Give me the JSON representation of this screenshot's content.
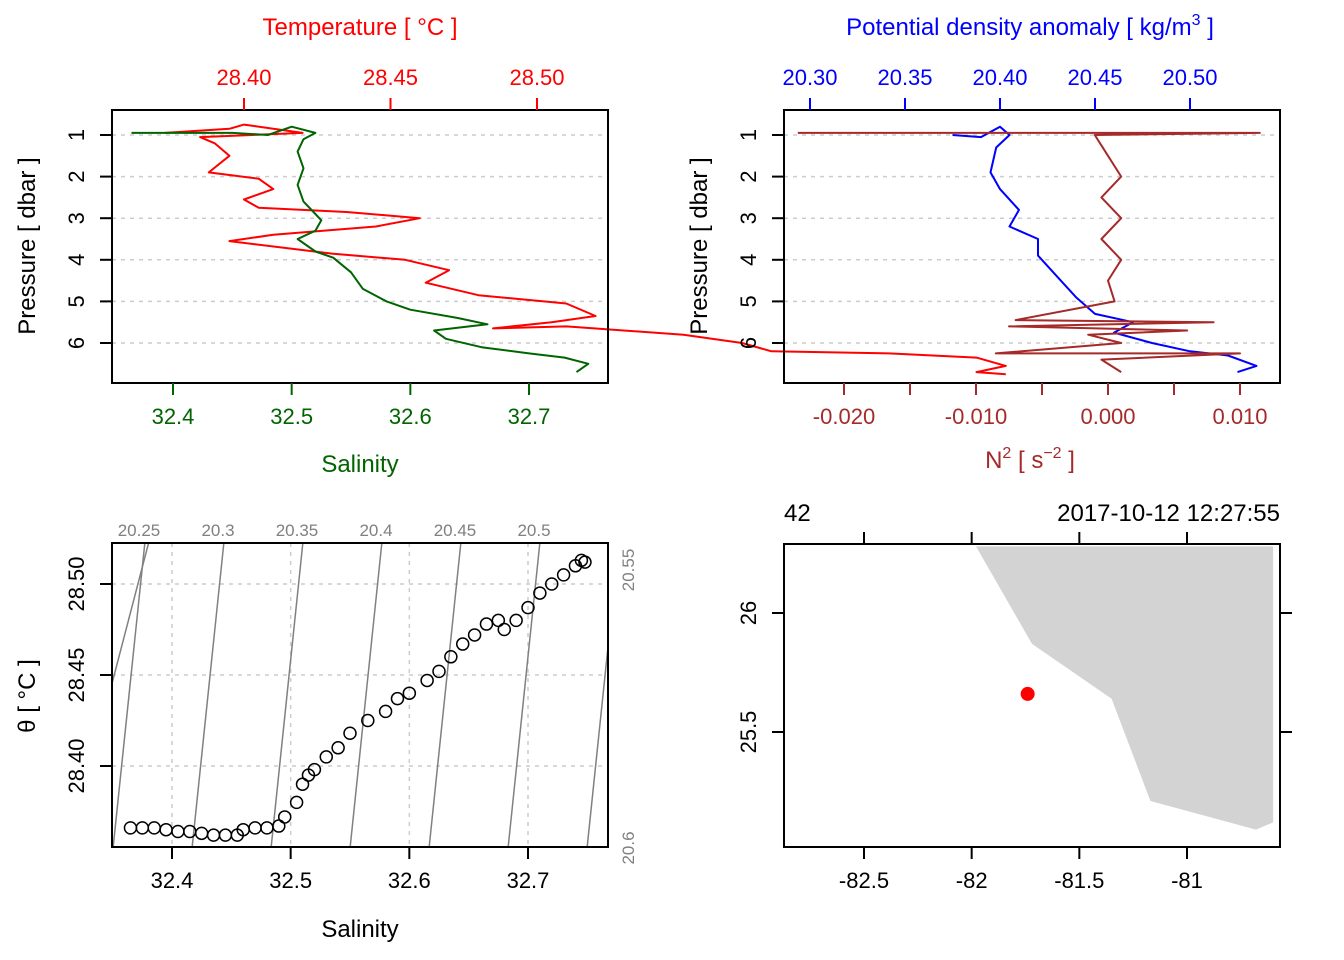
{
  "chart_data": [
    {
      "id": "profile_TS",
      "type": "line",
      "title": "",
      "top_axis_label": "Temperature [ °C ]",
      "top_axis_color": "#ff0000",
      "top_axis_ticks": [
        "28.40",
        "28.45",
        "28.50"
      ],
      "top_axis_tick_values": [
        28.4,
        28.45,
        28.5
      ],
      "top_axis_range": [
        28.355,
        28.525
      ],
      "bottom_axis_label": "Salinity",
      "bottom_axis_color": "#006400",
      "bottom_axis_ticks": [
        "32.4",
        "32.5",
        "32.6",
        "32.7"
      ],
      "bottom_axis_tick_values": [
        32.4,
        32.5,
        32.6,
        32.7
      ],
      "bottom_axis_range": [
        32.35,
        32.77
      ],
      "ylabel": "Pressure [ dbar ]",
      "y_ticks": [
        "1",
        "2",
        "3",
        "4",
        "5",
        "6"
      ],
      "y_tick_values": [
        1,
        2,
        3,
        4,
        5,
        6
      ],
      "ylim": [
        6.9,
        0.6
      ],
      "grid": true,
      "series": [
        {
          "name": "Temperature",
          "color": "#ff0000",
          "axis": "top",
          "points": [
            [
              28.373,
              0.95
            ],
            [
              28.395,
              0.85
            ],
            [
              28.4,
              0.75
            ],
            [
              28.41,
              0.85
            ],
            [
              28.42,
              0.95
            ],
            [
              28.385,
              1.05
            ],
            [
              28.39,
              1.2
            ],
            [
              28.395,
              1.5
            ],
            [
              28.388,
              1.9
            ],
            [
              28.405,
              2.05
            ],
            [
              28.41,
              2.3
            ],
            [
              28.4,
              2.55
            ],
            [
              28.405,
              2.75
            ],
            [
              28.435,
              2.85
            ],
            [
              28.46,
              3.0
            ],
            [
              28.445,
              3.2
            ],
            [
              28.41,
              3.4
            ],
            [
              28.395,
              3.55
            ],
            [
              28.43,
              3.85
            ],
            [
              28.455,
              4.0
            ],
            [
              28.47,
              4.25
            ],
            [
              28.462,
              4.55
            ],
            [
              28.48,
              4.85
            ],
            [
              28.51,
              5.05
            ],
            [
              28.52,
              5.35
            ],
            [
              28.505,
              5.5
            ],
            [
              28.485,
              5.65
            ],
            [
              28.51,
              5.6
            ],
            [
              28.55,
              5.8
            ],
            [
              28.57,
              6.0
            ],
            [
              28.58,
              6.2
            ],
            [
              28.62,
              6.25
            ],
            [
              28.65,
              6.35
            ],
            [
              28.66,
              6.55
            ],
            [
              28.65,
              6.7
            ],
            [
              28.66,
              6.75
            ]
          ]
        },
        {
          "name": "Salinity",
          "color": "#006400",
          "axis": "bottom",
          "points": [
            [
              32.365,
              0.95
            ],
            [
              32.45,
              0.95
            ],
            [
              32.48,
              1.0
            ],
            [
              32.5,
              0.8
            ],
            [
              32.52,
              0.95
            ],
            [
              32.51,
              1.1
            ],
            [
              32.505,
              1.4
            ],
            [
              32.51,
              1.8
            ],
            [
              32.505,
              2.2
            ],
            [
              32.51,
              2.6
            ],
            [
              32.52,
              2.9
            ],
            [
              32.525,
              3.05
            ],
            [
              32.52,
              3.3
            ],
            [
              32.505,
              3.5
            ],
            [
              32.52,
              3.8
            ],
            [
              32.535,
              3.95
            ],
            [
              32.55,
              4.3
            ],
            [
              32.56,
              4.7
            ],
            [
              32.58,
              5.0
            ],
            [
              32.6,
              5.2
            ],
            [
              32.64,
              5.4
            ],
            [
              32.665,
              5.55
            ],
            [
              32.62,
              5.7
            ],
            [
              32.63,
              5.9
            ],
            [
              32.66,
              6.1
            ],
            [
              32.7,
              6.25
            ],
            [
              32.73,
              6.35
            ],
            [
              32.75,
              6.5
            ],
            [
              32.74,
              6.7
            ]
          ]
        }
      ]
    },
    {
      "id": "profile_density_N2",
      "type": "line",
      "top_axis_label": "Potential density anomaly [ kg/m³ ]",
      "top_axis_color": "#0000ff",
      "top_axis_ticks": [
        "20.30",
        "20.35",
        "20.40",
        "20.45",
        "20.50"
      ],
      "top_axis_tick_values": [
        20.3,
        20.35,
        20.4,
        20.45,
        20.5
      ],
      "top_axis_range": [
        20.28,
        20.54
      ],
      "bottom_axis_label": "N² [ s⁻² ]",
      "bottom_axis_color": "#a52a2a",
      "bottom_axis_ticks": [
        "-0.020",
        "",
        "-0.010",
        "",
        "0.000",
        "",
        "0.010"
      ],
      "bottom_axis_tick_values": [
        -0.02,
        -0.015,
        -0.01,
        -0.005,
        0.0,
        0.005,
        0.01
      ],
      "bottom_axis_range": [
        -0.0248,
        0.0125
      ],
      "ylabel": "Pressure [ dbar ]",
      "y_ticks": [
        "1",
        "2",
        "3",
        "4",
        "5",
        "6"
      ],
      "y_tick_values": [
        1,
        2,
        3,
        4,
        5,
        6
      ],
      "ylim": [
        6.9,
        0.6
      ],
      "grid": true,
      "series": [
        {
          "name": "Potential density anomaly",
          "color": "#0000ff",
          "axis": "top",
          "points": [
            [
              20.375,
              1.0
            ],
            [
              20.39,
              1.05
            ],
            [
              20.4,
              0.8
            ],
            [
              20.405,
              1.0
            ],
            [
              20.398,
              1.3
            ],
            [
              20.395,
              1.9
            ],
            [
              20.4,
              2.3
            ],
            [
              20.41,
              2.8
            ],
            [
              20.405,
              3.2
            ],
            [
              20.42,
              3.5
            ],
            [
              20.42,
              3.9
            ],
            [
              20.43,
              4.4
            ],
            [
              20.44,
              4.9
            ],
            [
              20.45,
              5.3
            ],
            [
              20.47,
              5.5
            ],
            [
              20.46,
              5.75
            ],
            [
              20.48,
              6.0
            ],
            [
              20.5,
              6.2
            ],
            [
              20.52,
              6.3
            ],
            [
              20.535,
              6.55
            ],
            [
              20.525,
              6.7
            ]
          ]
        },
        {
          "name": "N2",
          "color": "#a52a2a",
          "axis": "bottom",
          "points": [
            [
              -0.0235,
              0.95
            ],
            [
              0.0115,
              0.95
            ],
            [
              -0.001,
              1.0
            ],
            [
              0.0,
              1.5
            ],
            [
              0.001,
              2.0
            ],
            [
              -0.0005,
              2.5
            ],
            [
              0.001,
              3.0
            ],
            [
              -0.0005,
              3.5
            ],
            [
              0.001,
              4.0
            ],
            [
              0.0,
              4.5
            ],
            [
              0.0005,
              5.0
            ],
            [
              -0.007,
              5.45
            ],
            [
              0.008,
              5.5
            ],
            [
              -0.0075,
              5.6
            ],
            [
              0.006,
              5.7
            ],
            [
              -0.0015,
              5.8
            ],
            [
              0.001,
              6.0
            ],
            [
              -0.0085,
              6.25
            ],
            [
              0.01,
              6.25
            ],
            [
              -0.0005,
              6.4
            ],
            [
              0.001,
              6.7
            ]
          ]
        }
      ]
    },
    {
      "id": "TS_diagram",
      "type": "scatter",
      "xlabel": "Salinity",
      "ylabel": "θ [ °C ]",
      "x_ticks": [
        "32.4",
        "32.5",
        "32.6",
        "32.7"
      ],
      "x_tick_values": [
        32.4,
        32.5,
        32.6,
        32.7
      ],
      "xlim": [
        32.35,
        32.765
      ],
      "y_ticks": [
        "28.40",
        "28.45",
        "28.50"
      ],
      "y_tick_values": [
        28.4,
        28.45,
        28.5
      ],
      "ylim": [
        28.355,
        28.52
      ],
      "isopycnal_labels": [
        "20.25",
        "20.3",
        "20.35",
        "20.4",
        "20.45",
        "20.5",
        "20.55",
        "20.6"
      ],
      "isopycnal_color": "#808080",
      "grid": true,
      "marker": "open-circle",
      "points": [
        [
          32.365,
          28.366
        ],
        [
          32.375,
          28.366
        ],
        [
          32.385,
          28.366
        ],
        [
          32.395,
          28.365
        ],
        [
          32.405,
          28.364
        ],
        [
          32.415,
          28.364
        ],
        [
          32.425,
          28.363
        ],
        [
          32.435,
          28.362
        ],
        [
          32.445,
          28.362
        ],
        [
          32.455,
          28.362
        ],
        [
          32.46,
          28.365
        ],
        [
          32.47,
          28.366
        ],
        [
          32.48,
          28.366
        ],
        [
          32.49,
          28.367
        ],
        [
          32.495,
          28.372
        ],
        [
          32.505,
          28.38
        ],
        [
          32.51,
          28.39
        ],
        [
          32.515,
          28.395
        ],
        [
          32.52,
          28.398
        ],
        [
          32.53,
          28.405
        ],
        [
          32.54,
          28.41
        ],
        [
          32.55,
          28.418
        ],
        [
          32.565,
          28.425
        ],
        [
          32.58,
          28.43
        ],
        [
          32.59,
          28.437
        ],
        [
          32.6,
          28.44
        ],
        [
          32.615,
          28.447
        ],
        [
          32.625,
          28.452
        ],
        [
          32.635,
          28.46
        ],
        [
          32.645,
          28.467
        ],
        [
          32.655,
          28.472
        ],
        [
          32.665,
          28.478
        ],
        [
          32.675,
          28.48
        ],
        [
          32.68,
          28.475
        ],
        [
          32.69,
          28.48
        ],
        [
          32.7,
          28.487
        ],
        [
          32.71,
          28.495
        ],
        [
          32.72,
          28.5
        ],
        [
          32.73,
          28.505
        ],
        [
          32.74,
          28.51
        ],
        [
          32.745,
          28.513
        ],
        [
          32.748,
          28.512
        ]
      ]
    },
    {
      "id": "station_map",
      "type": "scatter",
      "top_left_label": "42",
      "top_right_label": "2017-10-12 12:27:55",
      "x_ticks": [
        "-82.5",
        "-82",
        "-81.5",
        "-81"
      ],
      "x_tick_values": [
        -82.5,
        -82,
        -81.5,
        -81
      ],
      "xlim": [
        -82.87,
        -80.6
      ],
      "y_ticks": [
        "25.5",
        "26"
      ],
      "y_tick_values": [
        25.5,
        26
      ],
      "ylim": [
        25.02,
        26.28
      ],
      "land_color": "#d3d3d3",
      "coastline": [
        [
          -81.98,
          26.28
        ],
        [
          -81.72,
          25.87
        ],
        [
          -81.35,
          25.64
        ],
        [
          -81.17,
          25.21
        ],
        [
          -80.68,
          25.09
        ],
        [
          -80.6,
          25.12
        ],
        [
          -80.6,
          26.28
        ]
      ],
      "station": {
        "lon": -81.74,
        "lat": 25.66,
        "color": "#ff0000"
      }
    }
  ]
}
